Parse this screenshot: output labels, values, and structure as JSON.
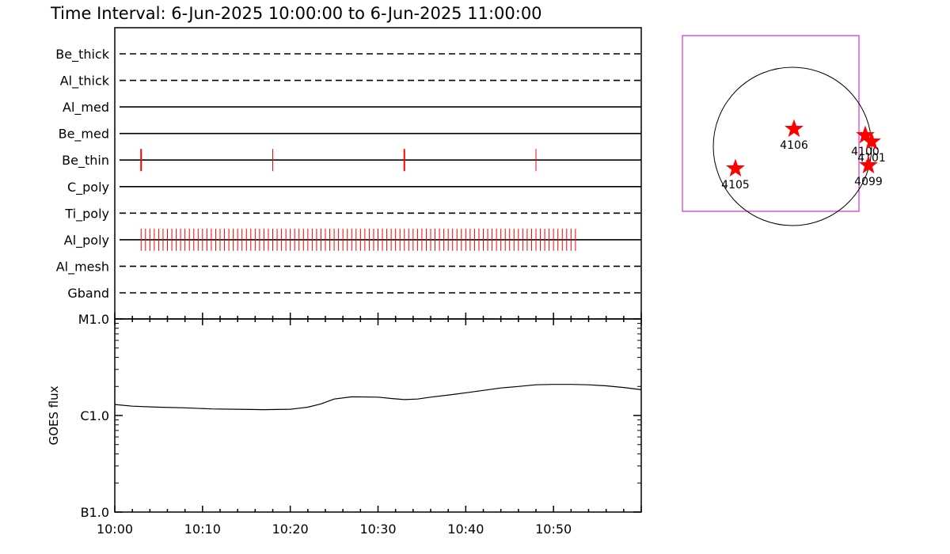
{
  "title": "Time Interval:  6-Jun-2025 10:00:00 to  6-Jun-2025 11:00:00",
  "chart_data": [
    {
      "type": "timeline",
      "x_unit": "minutes after 10:00",
      "xlim": [
        0,
        60
      ],
      "channels": [
        {
          "label": "Be_thick",
          "style": "dashed",
          "events": []
        },
        {
          "label": "Al_thick",
          "style": "dashed",
          "events": []
        },
        {
          "label": "Al_med",
          "style": "solid",
          "events": []
        },
        {
          "label": "Be_med",
          "style": "solid",
          "events": []
        },
        {
          "label": "Be_thin",
          "style": "solid",
          "events": [
            3,
            18,
            33,
            48
          ]
        },
        {
          "label": "C_poly",
          "style": "solid",
          "events": []
        },
        {
          "label": "Ti_poly",
          "style": "dashed",
          "events": []
        },
        {
          "label": "Al_poly",
          "style": "solid",
          "event_times": {
            "start": 3,
            "end": 52.5,
            "step": 0.5
          }
        },
        {
          "label": "Al_mesh",
          "style": "dashed",
          "events": []
        },
        {
          "label": "Gband",
          "style": "dashed",
          "events": []
        }
      ],
      "event_color": "#ff0000"
    },
    {
      "type": "line",
      "ylabel": "GOES flux",
      "yscale": "log",
      "ytick_labels": [
        "M1.0",
        "C1.0",
        "B1.0"
      ],
      "ylim_decades": [
        -7,
        -5
      ],
      "xticks": [
        "10:00",
        "10:10",
        "10:20",
        "10:30",
        "10:40",
        "10:50"
      ],
      "xlim": [
        0,
        60
      ],
      "series": [
        {
          "x": [
            0,
            2,
            5,
            8,
            11,
            14,
            17,
            20,
            22,
            23.5,
            25,
            27,
            30,
            31.5,
            33,
            34.5,
            36,
            38.5,
            40,
            42,
            44,
            46,
            48,
            50,
            52,
            54,
            56,
            58,
            60
          ],
          "flux": [
            1.3e-06,
            1.25e-06,
            1.22e-06,
            1.2e-06,
            1.17e-06,
            1.16e-06,
            1.15e-06,
            1.16e-06,
            1.22e-06,
            1.32e-06,
            1.48e-06,
            1.56e-06,
            1.55e-06,
            1.5e-06,
            1.46e-06,
            1.48e-06,
            1.55e-06,
            1.65e-06,
            1.72e-06,
            1.82e-06,
            1.93e-06,
            2e-06,
            2.08e-06,
            2.1e-06,
            2.1e-06,
            2.08e-06,
            2.03e-06,
            1.95e-06,
            1.85e-06
          ]
        }
      ]
    },
    {
      "type": "scatter",
      "marker": "star",
      "marker_color": "#ff0000",
      "box_color": "#cc33cc",
      "points": [
        {
          "label": "4106",
          "x": 0.02,
          "y": 0.22
        },
        {
          "label": "4105",
          "x": -0.72,
          "y": -0.28
        },
        {
          "label": "4100",
          "x": 0.92,
          "y": 0.14
        },
        {
          "label": "4101",
          "x": 1.0,
          "y": 0.06
        },
        {
          "label": "4099",
          "x": 0.96,
          "y": -0.24
        }
      ]
    }
  ]
}
